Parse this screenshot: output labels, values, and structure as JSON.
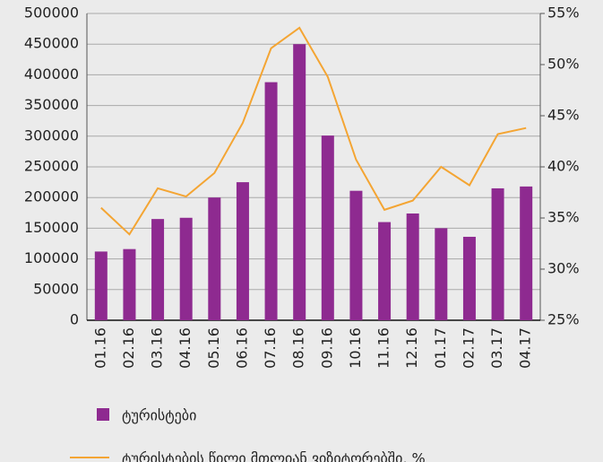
{
  "chart_data": {
    "type": "bar-line",
    "categories": [
      "01.16",
      "02.16",
      "03.16",
      "04.16",
      "05.16",
      "06.16",
      "07.16",
      "08.16",
      "09.16",
      "10.16",
      "11.16",
      "12.16",
      "01.17",
      "02.17",
      "03.17",
      "04.17"
    ],
    "series": [
      {
        "name": "ტურისტები",
        "type": "bar",
        "color": "#8e2a90",
        "values": [
          112000,
          116000,
          165000,
          167000,
          200000,
          225000,
          388000,
          450000,
          301000,
          211000,
          160000,
          174000,
          150000,
          136000,
          215000,
          218000
        ]
      },
      {
        "name": "ტურისტების წილი მთლიან ვიზიტორებში, %",
        "type": "line",
        "axis": "y2",
        "color": "#f4a533",
        "values": [
          36.0,
          33.4,
          37.9,
          37.1,
          39.4,
          44.3,
          51.6,
          53.6,
          48.8,
          40.7,
          35.8,
          36.7,
          40.0,
          38.2,
          43.2,
          43.8
        ]
      }
    ],
    "ylim": [
      0,
      500000
    ],
    "yticks": [
      0,
      50000,
      100000,
      150000,
      200000,
      250000,
      300000,
      350000,
      400000,
      450000,
      500000
    ],
    "y2lim": [
      25,
      55
    ],
    "y2ticks": [
      {
        "value": 25,
        "label": "25%"
      },
      {
        "value": 30,
        "label": "30%"
      },
      {
        "value": 35,
        "label": "35%"
      },
      {
        "value": 40,
        "label": "40%"
      },
      {
        "value": 45,
        "label": "45%"
      },
      {
        "value": 50,
        "label": "50%"
      },
      {
        "value": 55,
        "label": "55%"
      }
    ],
    "grid": true
  }
}
